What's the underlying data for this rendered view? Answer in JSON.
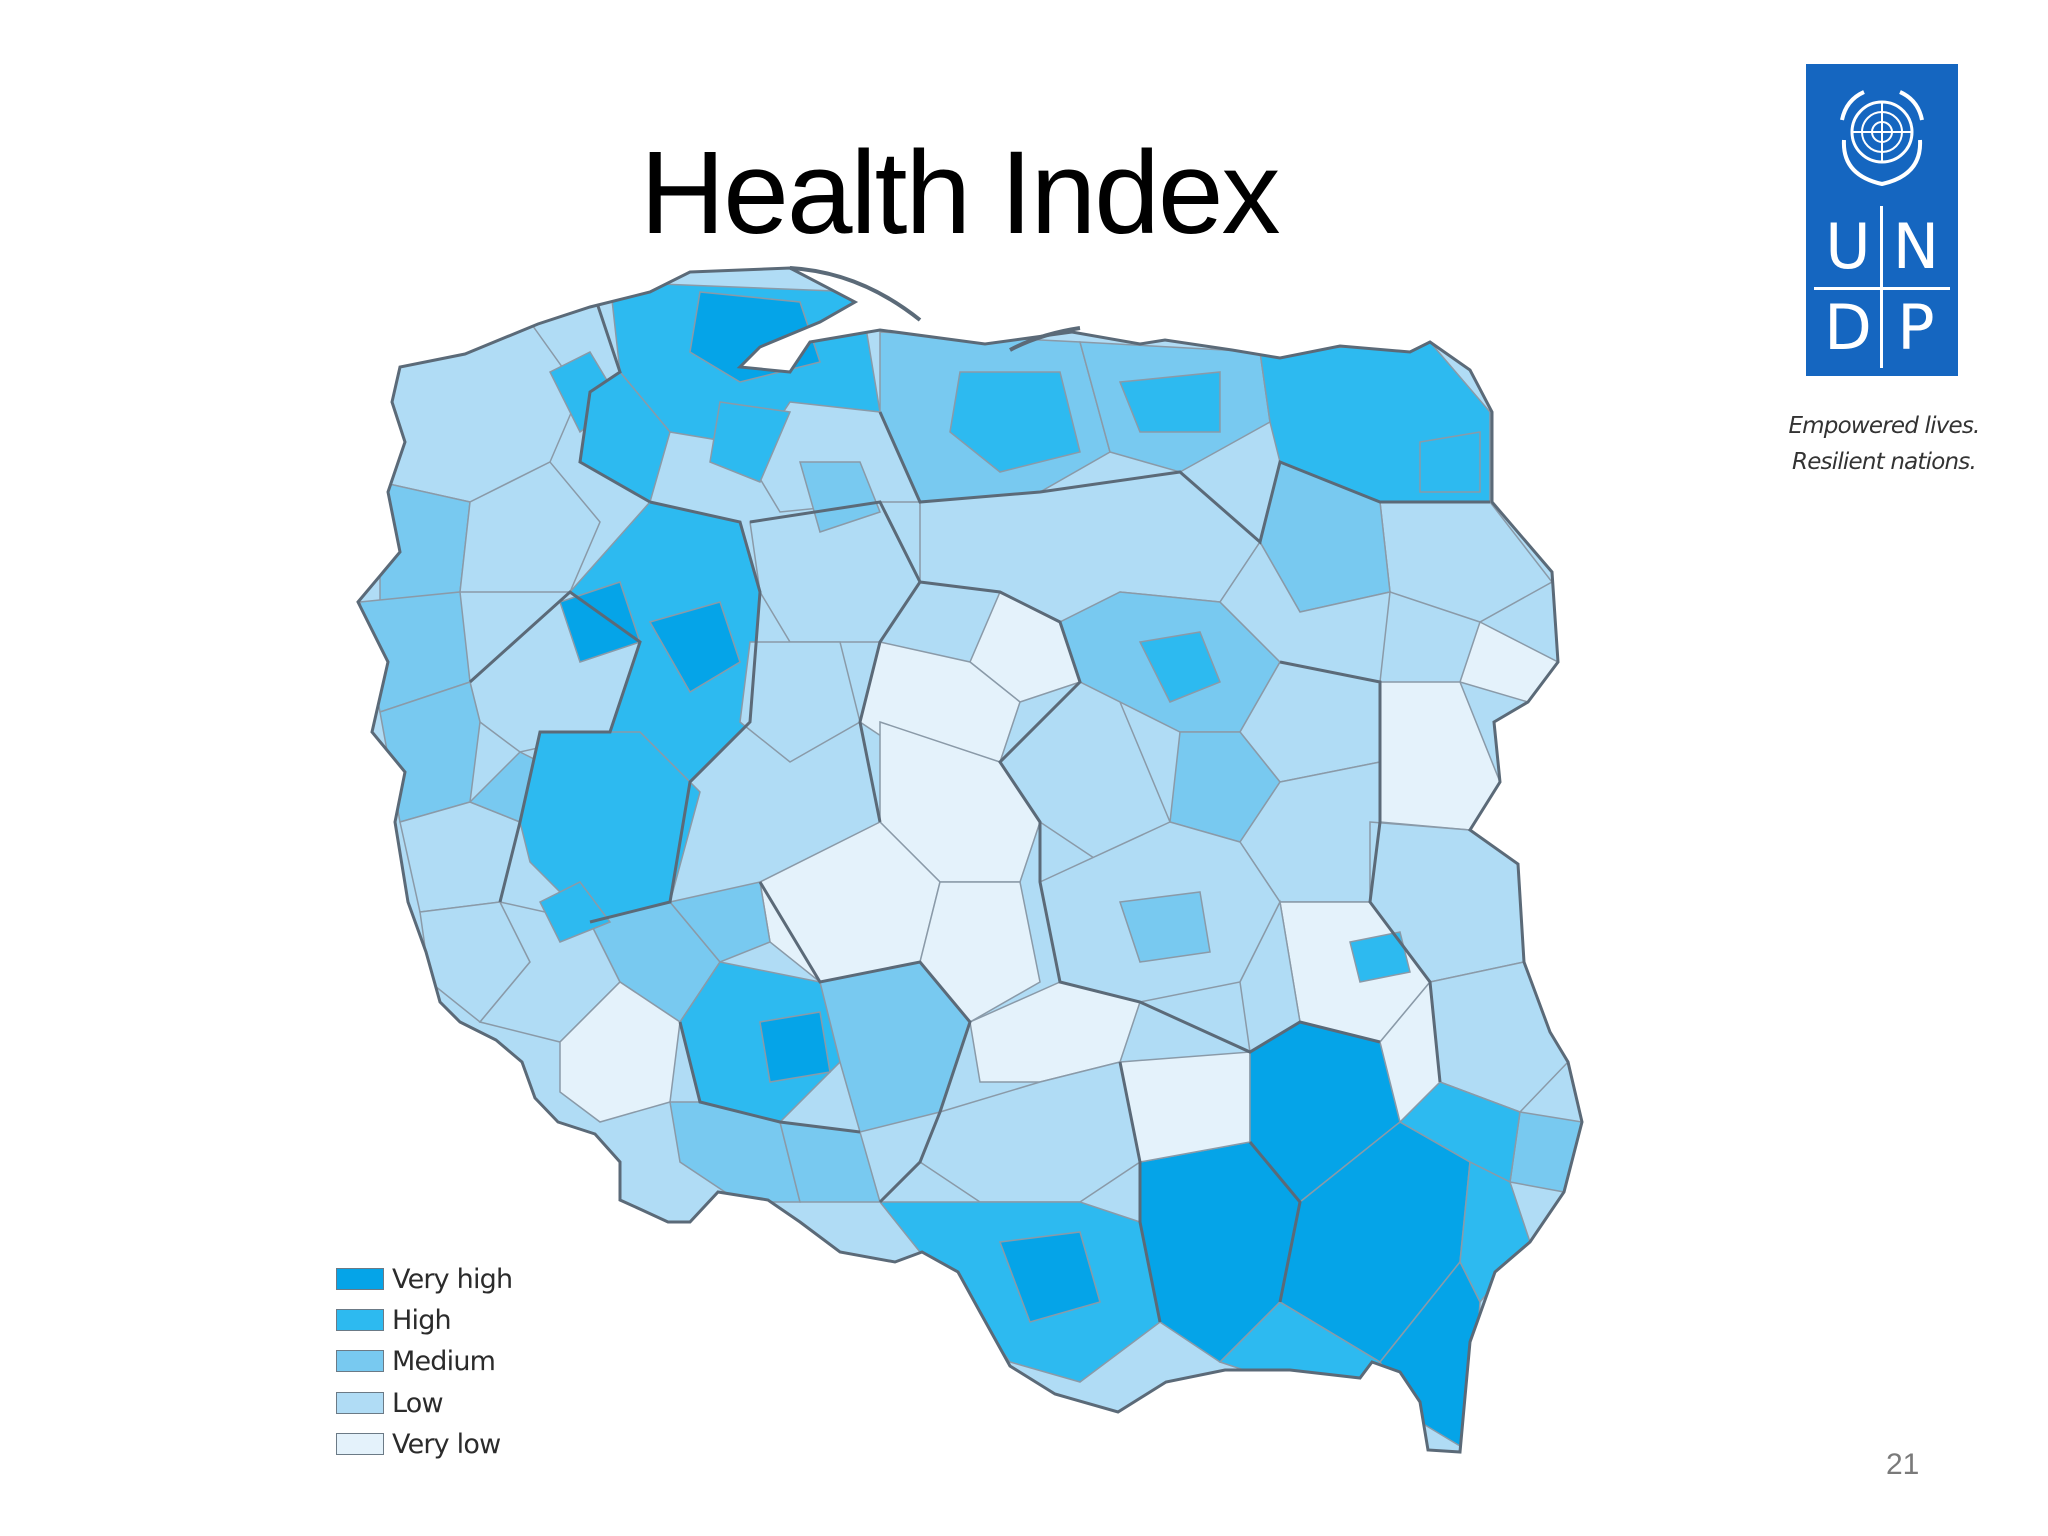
{
  "slide": {
    "title": "Health Index",
    "page_number": "21"
  },
  "logo": {
    "name": "UNDP",
    "letters": [
      "U",
      "N",
      "D",
      "P"
    ],
    "tagline_line1": "Empowered lives.",
    "tagline_line2": "Resilient nations.",
    "background_color": "#1566c0"
  },
  "map": {
    "region": "Poland",
    "border_color": "#5b6a78",
    "legend": [
      {
        "label": "Very high",
        "color": "#05a4e8"
      },
      {
        "label": "High",
        "color": "#2dbaf0"
      },
      {
        "label": "Medium",
        "color": "#78c9f0"
      },
      {
        "label": "Low",
        "color": "#b0dcf5"
      },
      {
        "label": "Very low",
        "color": "#e4f2fb"
      }
    ]
  }
}
